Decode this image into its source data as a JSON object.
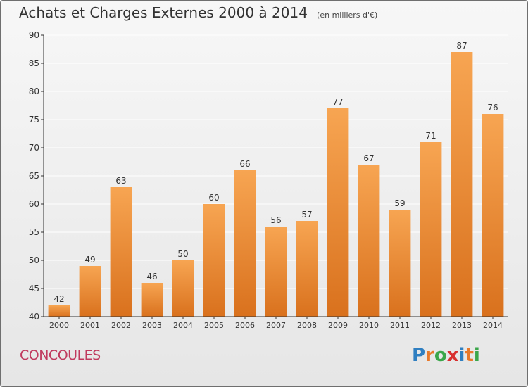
{
  "title": "Achats et Charges Externes 2000 à 2014",
  "subtitle": "(en milliers d'€)",
  "commune": "CONCOULES",
  "logo": {
    "text": "Proxiti",
    "letters": [
      {
        "ch": "P",
        "color": "#2f7fc1"
      },
      {
        "ch": "r",
        "color": "#e8792a"
      },
      {
        "ch": "o",
        "color": "#3aa64a"
      },
      {
        "ch": "x",
        "color": "#d8302f"
      },
      {
        "ch": "i",
        "color": "#2f7fc1"
      },
      {
        "ch": "t",
        "color": "#e8792a"
      },
      {
        "ch": "i",
        "color": "#3aa64a"
      }
    ]
  },
  "colors": {
    "bar_light": "#f7a552",
    "bar_dark": "#d9711d",
    "axis": "#333333",
    "grid": "#ffffff"
  },
  "chart_data": {
    "type": "bar",
    "title": "Achats et Charges Externes 2000 à 2014",
    "subtitle": "(en milliers d'€)",
    "xlabel": "",
    "ylabel": "",
    "categories": [
      "2000",
      "2001",
      "2002",
      "2003",
      "2004",
      "2005",
      "2006",
      "2007",
      "2008",
      "2009",
      "2010",
      "2011",
      "2012",
      "2013",
      "2014"
    ],
    "values": [
      42,
      49,
      63,
      46,
      50,
      60,
      66,
      56,
      57,
      77,
      67,
      59,
      71,
      87,
      76
    ],
    "ylim": [
      40,
      90
    ],
    "yticks": [
      40,
      45,
      50,
      55,
      60,
      65,
      70,
      75,
      80,
      85,
      90
    ],
    "grid": true,
    "data_labels": true
  }
}
